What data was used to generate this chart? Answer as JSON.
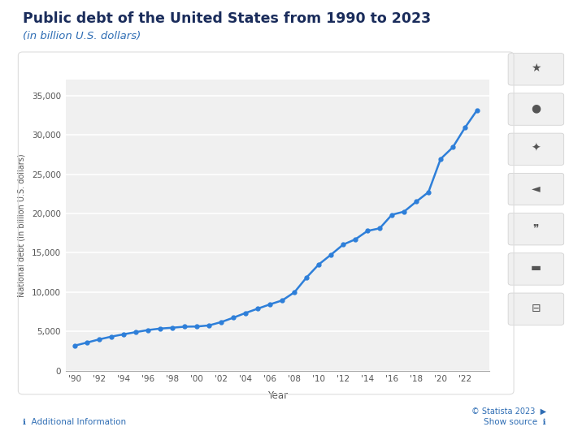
{
  "title": "Public debt of the United States from 1990 to 2023",
  "subtitle": "(in billion U.S. dollars)",
  "xlabel": "Year",
  "ylabel": "National debt (in billion U.S. dollars)",
  "title_color": "#1a2c5b",
  "subtitle_color": "#2e6db4",
  "line_color": "#2e7fd9",
  "marker_color": "#2e7fd9",
  "bg_color": "#ffffff",
  "plot_bg_color": "#f0f0f0",
  "grid_color": "#ffffff",
  "years": [
    1990,
    1991,
    1992,
    1993,
    1994,
    1995,
    1996,
    1997,
    1998,
    1999,
    2000,
    2001,
    2002,
    2003,
    2004,
    2005,
    2006,
    2007,
    2008,
    2009,
    2010,
    2011,
    2012,
    2013,
    2014,
    2015,
    2016,
    2017,
    2018,
    2019,
    2020,
    2021,
    2022,
    2023
  ],
  "values": [
    3206,
    3599,
    4002,
    4351,
    4643,
    4921,
    5182,
    5369,
    5478,
    5606,
    5629,
    5770,
    6198,
    6760,
    7355,
    7905,
    8451,
    8951,
    9986,
    11876,
    13528,
    14764,
    16051,
    16719,
    17794,
    18120,
    19846,
    20245,
    21516,
    22719,
    26945,
    28428,
    30929,
    33167
  ],
  "xtick_labels": [
    "'90",
    "'92",
    "'94",
    "'96",
    "'98",
    "'00",
    "'02",
    "'04",
    "'06",
    "'08",
    "'10",
    "'12",
    "'14",
    "'16",
    "'18",
    "'20",
    "'22"
  ],
  "xtick_years": [
    1990,
    1992,
    1994,
    1996,
    1998,
    2000,
    2002,
    2004,
    2006,
    2008,
    2010,
    2012,
    2014,
    2016,
    2018,
    2020,
    2022
  ],
  "ylim": [
    0,
    37000
  ],
  "ytick_vals": [
    0,
    5000,
    10000,
    15000,
    20000,
    25000,
    30000,
    35000
  ],
  "icon_labels": [
    "★",
    "🔔",
    "⚙",
    "<",
    "““",
    "🚩",
    "🖨"
  ],
  "card_border_color": "#dddddd",
  "footer_color": "#2e6db4",
  "icon_bg": "#e8e8e8"
}
